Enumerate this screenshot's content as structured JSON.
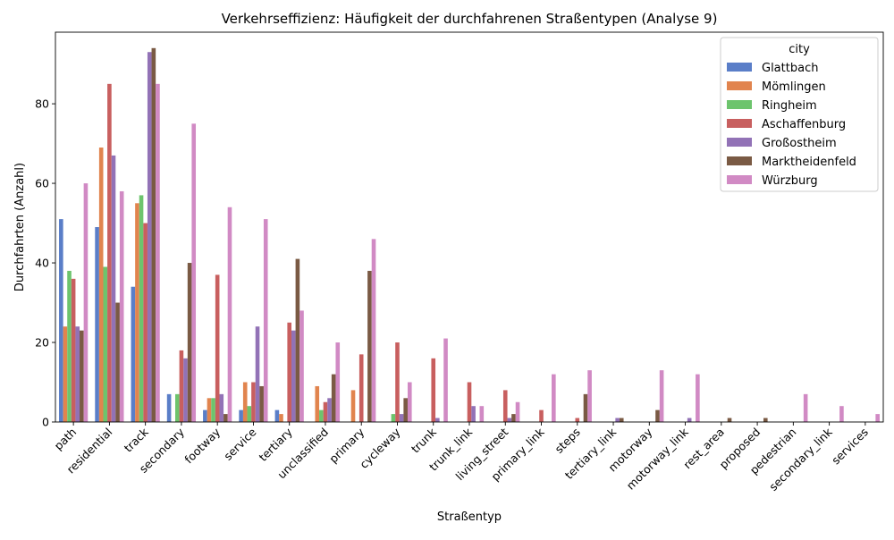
{
  "chart_data": {
    "type": "bar",
    "title": "Verkehrseffizienz: Häufigkeit der durchfahrenen Straßentypen (Analyse 9)",
    "xlabel": "Straßentyp",
    "ylabel": "Durchfahrten (Anzahl)",
    "ylim": [
      0,
      98
    ],
    "yticks": [
      0,
      20,
      40,
      60,
      80
    ],
    "grid": false,
    "legend": {
      "title": "city",
      "placement": "top-right"
    },
    "categories": [
      "path",
      "residential",
      "track",
      "secondary",
      "footway",
      "service",
      "tertiary",
      "unclassified",
      "primary",
      "cycleway",
      "trunk",
      "trunk_link",
      "living_street",
      "primary_link",
      "steps",
      "tertiary_link",
      "motorway",
      "motorway_link",
      "rest_area",
      "proposed",
      "pedestrian",
      "secondary_link",
      "services"
    ],
    "series": [
      {
        "name": "Glattbach",
        "color": "#5a7ec8",
        "values": [
          51,
          49,
          34,
          7,
          3,
          3,
          3,
          0,
          0,
          0,
          0,
          0,
          0,
          0,
          0,
          0,
          0,
          0,
          0,
          0,
          0,
          0,
          0
        ]
      },
      {
        "name": "Mömlingen",
        "color": "#e1844e",
        "values": [
          24,
          69,
          55,
          0,
          6,
          10,
          2,
          9,
          8,
          0,
          0,
          0,
          0,
          0,
          0,
          0,
          0,
          0,
          0,
          0,
          0,
          0,
          0
        ]
      },
      {
        "name": "Ringheim",
        "color": "#6dc46d",
        "values": [
          38,
          39,
          57,
          7,
          6,
          4,
          0,
          3,
          0,
          2,
          0,
          0,
          0,
          0,
          0,
          0,
          0,
          0,
          0,
          0,
          0,
          0,
          0
        ]
      },
      {
        "name": "Aschaffenburg",
        "color": "#c85f5f",
        "values": [
          36,
          85,
          50,
          18,
          37,
          10,
          25,
          5,
          17,
          20,
          16,
          10,
          8,
          3,
          1,
          0,
          0,
          0,
          0,
          0,
          0,
          0,
          0
        ]
      },
      {
        "name": "Großostheim",
        "color": "#9272b6",
        "values": [
          24,
          67,
          93,
          16,
          7,
          24,
          23,
          6,
          0,
          2,
          1,
          4,
          1,
          0,
          0,
          1,
          0,
          1,
          0,
          0,
          0,
          0,
          0
        ]
      },
      {
        "name": "Marktheidenfeld",
        "color": "#7a5a44",
        "values": [
          23,
          30,
          94,
          40,
          2,
          9,
          41,
          12,
          38,
          6,
          0,
          0,
          2,
          0,
          7,
          1,
          3,
          0,
          1,
          1,
          0,
          0,
          0
        ]
      },
      {
        "name": "Würzburg",
        "color": "#d18ac4",
        "values": [
          60,
          58,
          85,
          75,
          54,
          51,
          28,
          20,
          46,
          10,
          21,
          4,
          5,
          12,
          13,
          0,
          13,
          12,
          0,
          0,
          7,
          4,
          2
        ]
      }
    ]
  }
}
